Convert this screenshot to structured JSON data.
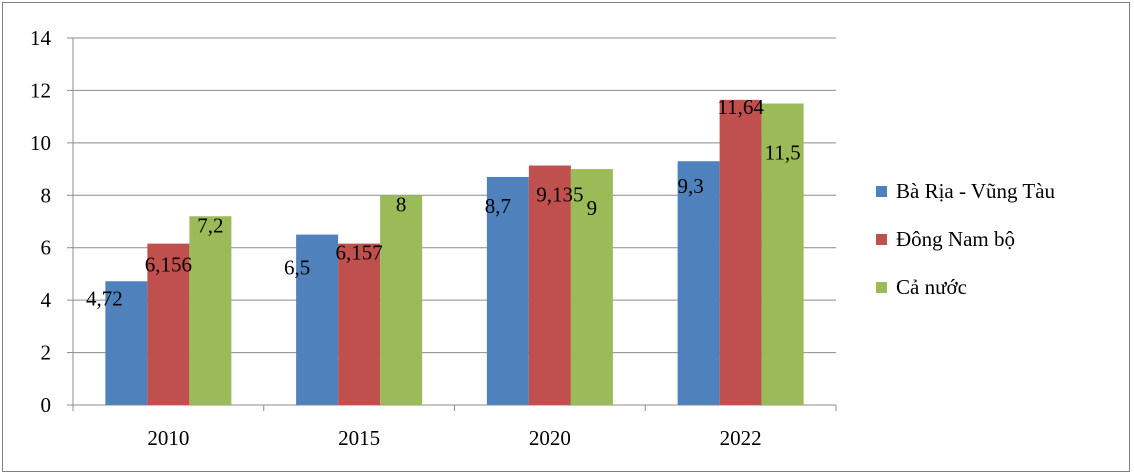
{
  "chart_data": {
    "type": "bar",
    "title": "",
    "xlabel": "",
    "ylabel": "",
    "categories": [
      "2010",
      "2015",
      "2020",
      "2022"
    ],
    "ylim": [
      0,
      14
    ],
    "yticks": [
      "0",
      "2",
      "4",
      "6",
      "8",
      "10",
      "12",
      "14"
    ],
    "grid": true,
    "legend_position": "right",
    "series": [
      {
        "name": "Bà Rịa - Vũng Tàu",
        "color": "#4f81bd",
        "values": [
          4.72,
          6.5,
          8.7,
          9.3
        ],
        "labels": [
          "4,72",
          "6,5",
          "8,7",
          "9,3"
        ]
      },
      {
        "name": "Đông Nam bộ",
        "color": "#c0504d",
        "values": [
          6.156,
          6.157,
          9.135,
          11.64
        ],
        "labels": [
          "6,156",
          "6,157",
          "9,135",
          "11,64"
        ]
      },
      {
        "name": "Cả nước",
        "color": "#9bbb59",
        "values": [
          7.2,
          8,
          9,
          11.5
        ],
        "labels": [
          "7,2",
          "8",
          "9",
          "11,5"
        ]
      }
    ]
  }
}
